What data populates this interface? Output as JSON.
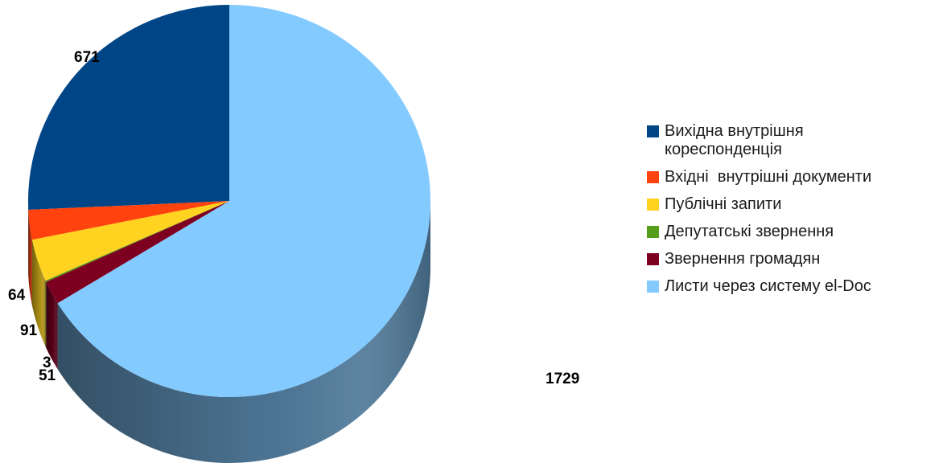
{
  "chart_data": {
    "type": "pie",
    "title": "",
    "categories": [
      "Вихідна внутрішня кореспонденція",
      "Вхідні  внутрішні документи",
      "Публічні запити",
      "Депутатські звернення",
      "Звернення громадян",
      "Листи через систему el-Doc"
    ],
    "values": [
      671,
      64,
      91,
      3,
      51,
      1729
    ],
    "value_labels": [
      "671",
      "64",
      "91",
      "3",
      "51",
      "1729"
    ],
    "colors": [
      "#004586",
      "#ff420e",
      "#ffd320",
      "#579d1c",
      "#7e0021",
      "#83caff"
    ],
    "side_colors": [
      "#00305e",
      "#b32e0a",
      "#b39416",
      "#3d6e14",
      "#580017",
      "#4f7999"
    ],
    "legend_position": "right",
    "style": "3d"
  }
}
